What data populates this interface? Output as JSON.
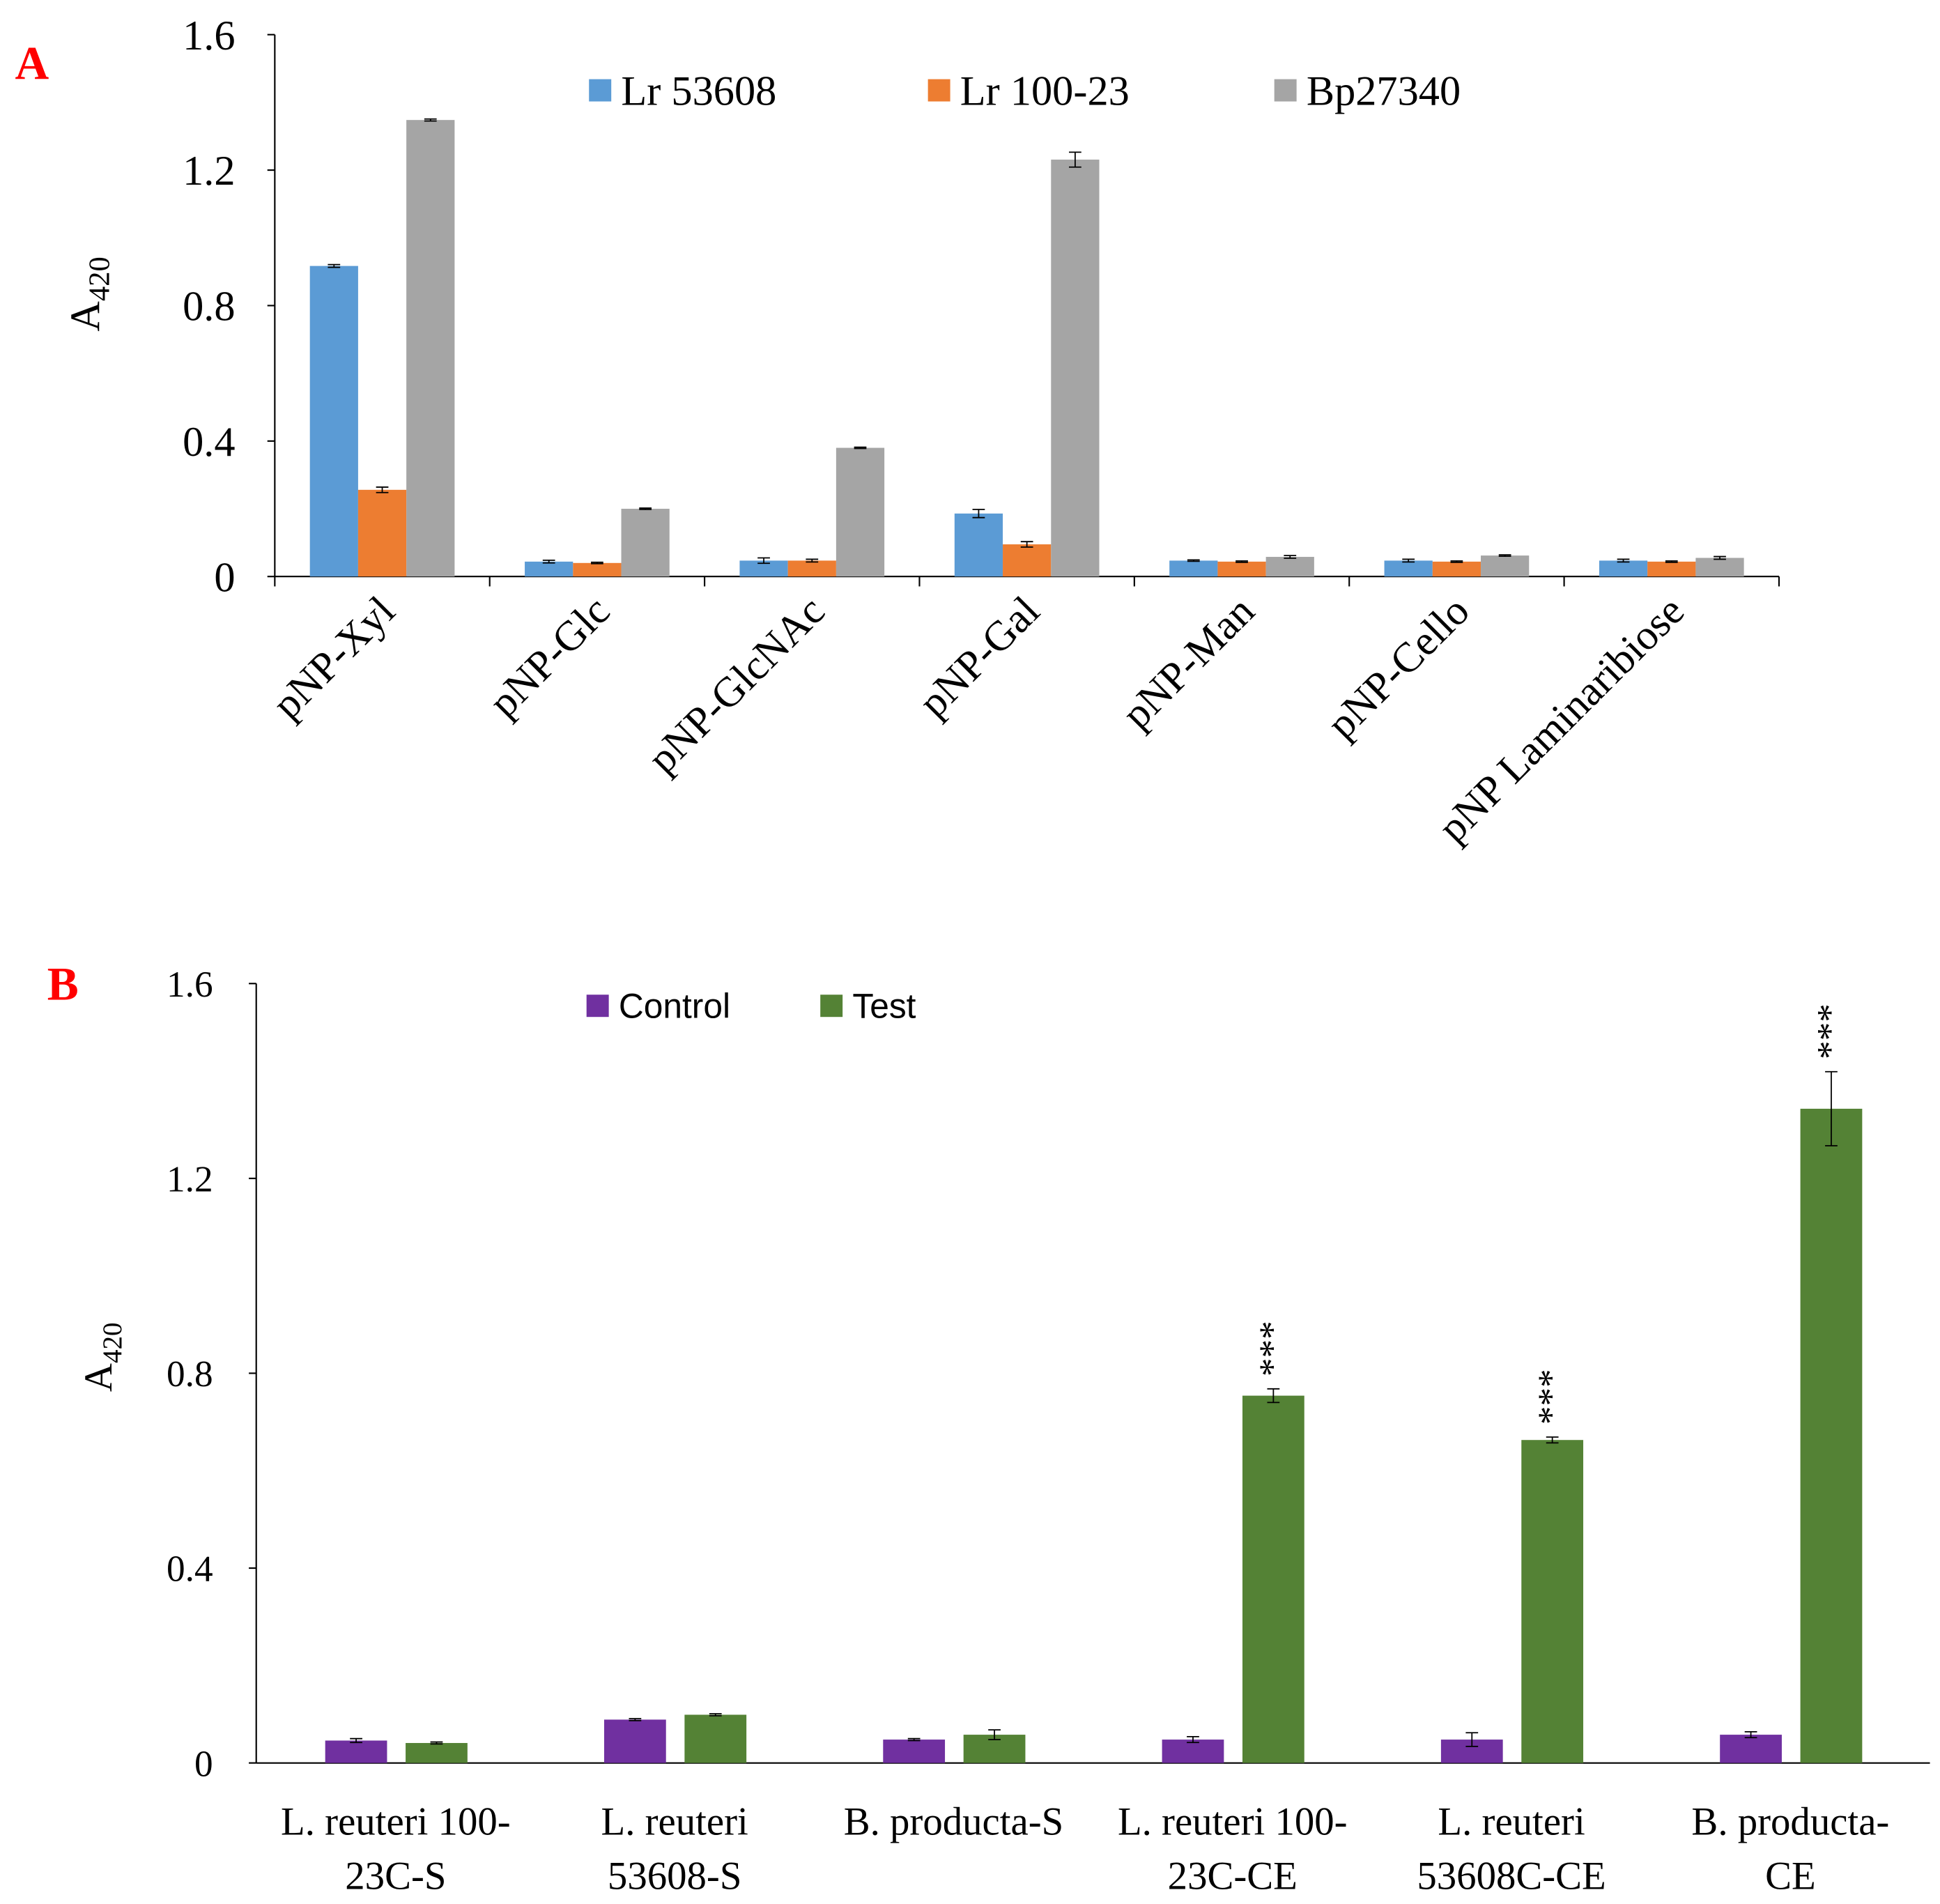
{
  "chart_data": [
    {
      "type": "bar",
      "panel_label": "A",
      "ylabel": "A",
      "ylabel_sub": "420",
      "ylim": [
        0,
        1.6
      ],
      "yticks": [
        "0",
        "0.4",
        "0.8",
        "1.2",
        "1.6"
      ],
      "legend_placement": "top",
      "categories": [
        "pNP-Xyl",
        "pNP-Glc",
        "pNP-GlcNAc",
        "pNP-Gal",
        "pNP-Man",
        "pNP-Cello",
        "pNP Laminaribiose"
      ],
      "series": [
        {
          "name": "Lr 53608",
          "color": "#5b9bd5",
          "values": [
            0.917,
            0.044,
            0.047,
            0.186,
            0.047,
            0.047,
            0.047
          ],
          "errors": [
            0.004,
            0.004,
            0.008,
            0.012,
            0.002,
            0.004,
            0.004
          ]
        },
        {
          "name": "Lr 100-23",
          "color": "#ed7d31",
          "values": [
            0.256,
            0.04,
            0.047,
            0.095,
            0.044,
            0.044,
            0.044
          ],
          "errors": [
            0.008,
            0.002,
            0.004,
            0.008,
            0.002,
            0.002,
            0.002
          ]
        },
        {
          "name": "Bp27340",
          "color": "#a5a5a5",
          "values": [
            1.348,
            0.2,
            0.38,
            1.231,
            0.058,
            0.062,
            0.055
          ],
          "errors": [
            0.003,
            0.002,
            0.002,
            0.022,
            0.004,
            0.002,
            0.004
          ]
        }
      ]
    },
    {
      "type": "bar",
      "panel_label": "B",
      "ylabel": "A",
      "ylabel_sub": "420",
      "ylim": [
        0,
        1.6
      ],
      "yticks": [
        "0",
        "0.4",
        "0.8",
        "1.2",
        "1.6"
      ],
      "legend_placement": "top",
      "categories": [
        [
          "L. reuteri 100-",
          "23C-S"
        ],
        [
          "L. reuteri",
          "53608-S"
        ],
        [
          "B. producta-S",
          ""
        ],
        [
          "L. reuteri 100-",
          "23C-CE"
        ],
        [
          "L. reuteri",
          "53608C-CE"
        ],
        [
          "B. producta-",
          "CE"
        ]
      ],
      "series": [
        {
          "name": "Control",
          "color": "#7030a0",
          "values": [
            0.046,
            0.089,
            0.048,
            0.048,
            0.048,
            0.058
          ],
          "errors": [
            0.004,
            0.002,
            0.002,
            0.006,
            0.014,
            0.006
          ]
        },
        {
          "name": "Test",
          "color": "#548235",
          "values": [
            0.041,
            0.099,
            0.058,
            0.754,
            0.663,
            1.343
          ],
          "errors": [
            0.002,
            0.002,
            0.01,
            0.014,
            0.006,
            0.076
          ]
        }
      ],
      "annotations": [
        "",
        "",
        "",
        "***",
        "***",
        "***"
      ]
    }
  ]
}
